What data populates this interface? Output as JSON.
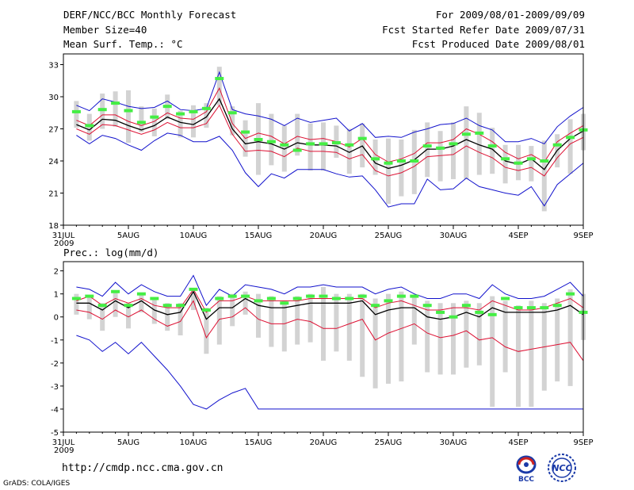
{
  "header": {
    "title": "DERF/NCC/BCC Monthly Forecast",
    "member_size": "Member Size=40",
    "variable": "Mean Surf. Temp.: °C",
    "period": "For 2009/08/01-2009/09/09",
    "started": "Fcst Started Refer Date 2009/07/31",
    "produced": "Fcst Produced Date 2009/08/01"
  },
  "footer": {
    "url": "http://cmdp.ncc.cma.gov.cn",
    "grads": "GrADS: COLA/IGES",
    "logo_bcc_text": "BCC",
    "logo_ncc_text": "NCC"
  },
  "colors": {
    "ensemble_mean": "#000000",
    "obs_bar": "#44ee44",
    "range_bar": "#d3d3d3",
    "spread_line": "#dd1133",
    "extreme_line": "#1111cc"
  },
  "chart_data": [
    {
      "type": "line",
      "title": "Mean Surf. Temp.: °C",
      "ylim": [
        18,
        34
      ],
      "yticks": [
        18,
        21,
        24,
        27,
        30,
        33
      ],
      "xlim": [
        0,
        40
      ],
      "xtick_positions": [
        0,
        5,
        10,
        15,
        20,
        25,
        30,
        35,
        40
      ],
      "xtick_labels": [
        "31JUL",
        "5AUG",
        "10AUG",
        "15AUG",
        "20AUG",
        "25AUG",
        "30AUG",
        "4SEP",
        "9SEP"
      ],
      "x_year_label": "2009",
      "x": [
        1,
        2,
        3,
        4,
        5,
        6,
        7,
        8,
        9,
        10,
        11,
        12,
        13,
        14,
        15,
        16,
        17,
        18,
        19,
        20,
        21,
        22,
        23,
        24,
        25,
        26,
        27,
        28,
        29,
        30,
        31,
        32,
        33,
        34,
        35,
        36,
        37,
        38,
        39,
        40
      ],
      "series": [
        {
          "name": "max",
          "values": [
            29.2,
            28.7,
            29.8,
            29.5,
            29.1,
            28.9,
            29.0,
            29.6,
            28.8,
            28.7,
            28.9,
            32.3,
            28.8,
            28.4,
            28.2,
            27.9,
            27.3,
            28.0,
            27.6,
            27.8,
            28.0,
            26.8,
            27.5,
            26.2,
            26.3,
            26.2,
            26.7,
            27.0,
            27.4,
            27.5,
            28.0,
            27.3,
            26.9,
            25.8,
            25.8,
            26.1,
            25.6,
            27.2,
            28.2,
            29.0
          ]
        },
        {
          "name": "upper",
          "values": [
            27.8,
            27.3,
            28.3,
            28.3,
            27.7,
            27.3,
            27.7,
            28.5,
            28.0,
            27.9,
            28.6,
            30.8,
            27.5,
            26.1,
            26.6,
            26.3,
            25.6,
            26.3,
            26.0,
            26.1,
            25.8,
            25.3,
            26.1,
            24.6,
            23.9,
            24.2,
            24.7,
            25.7,
            25.7,
            26.0,
            27.0,
            26.5,
            25.8,
            24.8,
            24.2,
            24.6,
            23.9,
            25.8,
            26.6,
            27.3
          ]
        },
        {
          "name": "mean",
          "values": [
            27.4,
            26.9,
            27.9,
            27.8,
            27.3,
            26.9,
            27.3,
            28.1,
            27.6,
            27.4,
            28.1,
            29.8,
            27.0,
            25.6,
            25.8,
            25.6,
            25.1,
            25.7,
            25.5,
            25.5,
            25.4,
            24.8,
            25.4,
            23.8,
            23.3,
            23.6,
            24.1,
            25.1,
            25.1,
            25.4,
            26.0,
            25.5,
            25.1,
            24.0,
            23.7,
            24.2,
            23.2,
            25.0,
            26.1,
            26.8
          ]
        },
        {
          "name": "lower",
          "values": [
            27.0,
            26.5,
            27.4,
            27.3,
            26.9,
            26.5,
            26.9,
            27.6,
            27.1,
            27.1,
            27.5,
            29.2,
            26.5,
            24.9,
            25.0,
            24.9,
            24.4,
            25.2,
            24.9,
            24.9,
            24.8,
            24.2,
            24.6,
            23.1,
            22.6,
            22.9,
            23.5,
            24.4,
            24.5,
            24.6,
            25.4,
            24.8,
            24.3,
            23.4,
            23.1,
            23.4,
            22.6,
            24.3,
            25.6,
            26.2
          ]
        },
        {
          "name": "min",
          "values": [
            26.4,
            25.6,
            26.4,
            26.1,
            25.5,
            25.0,
            25.9,
            26.6,
            26.4,
            25.8,
            25.8,
            26.3,
            25.0,
            22.9,
            21.6,
            22.8,
            22.4,
            23.2,
            23.2,
            23.2,
            22.8,
            22.5,
            22.6,
            21.3,
            19.7,
            20.0,
            20.0,
            22.3,
            21.3,
            21.4,
            22.4,
            21.6,
            21.3,
            21.0,
            20.8,
            21.6,
            19.8,
            21.8,
            22.8,
            23.8
          ]
        },
        {
          "name": "obs",
          "values": [
            28.6,
            27.3,
            28.8,
            29.4,
            28.7,
            27.6,
            28.1,
            29.1,
            28.4,
            28.6,
            28.9,
            31.7,
            28.5,
            26.7,
            26.0,
            25.8,
            25.5,
            25.0,
            25.6,
            25.6,
            25.7,
            25.5,
            26.1,
            24.2,
            23.8,
            24.0,
            24.0,
            25.4,
            25.2,
            25.6,
            26.5,
            26.6,
            25.4,
            24.2,
            23.8,
            24.2,
            24.0,
            25.5,
            26.2,
            26.9
          ]
        },
        {
          "name": "range_top",
          "values": [
            29.6,
            28.4,
            30.3,
            30.5,
            30.6,
            29.1,
            28.9,
            30.2,
            28.7,
            29.2,
            29.4,
            32.8,
            29.1,
            27.8,
            29.4,
            28.4,
            27.3,
            28.4,
            27.5,
            27.6,
            27.3,
            27.0,
            27.5,
            26.0,
            26.1,
            26.0,
            26.9,
            27.6,
            26.8,
            27.6,
            29.1,
            28.5,
            27.1,
            25.5,
            25.5,
            25.4,
            25.9,
            26.5,
            27.9,
            28.4
          ]
        },
        {
          "name": "range_bottom",
          "values": [
            27.1,
            25.9,
            27.0,
            27.2,
            25.7,
            26.7,
            26.3,
            27.9,
            26.2,
            26.2,
            27.1,
            29.2,
            26.4,
            24.4,
            22.7,
            23.6,
            23.0,
            24.5,
            23.1,
            23.1,
            24.3,
            22.8,
            23.4,
            22.7,
            20.0,
            20.7,
            20.9,
            22.5,
            22.1,
            22.3,
            22.3,
            22.7,
            22.8,
            21.9,
            22.2,
            22.1,
            19.3,
            23.4,
            22.8,
            25.0
          ]
        }
      ]
    },
    {
      "type": "line",
      "title": "Prec.: log(mm/d)",
      "ylim": [
        -5,
        2.4
      ],
      "yticks": [
        -5,
        -4,
        -3,
        -2,
        -1,
        0,
        1,
        2
      ],
      "xlim": [
        0,
        40
      ],
      "xtick_positions": [
        0,
        5,
        10,
        15,
        20,
        25,
        30,
        35,
        40
      ],
      "xtick_labels": [
        "31JUL",
        "5AUG",
        "10AUG",
        "15AUG",
        "20AUG",
        "25AUG",
        "30AUG",
        "4SEP",
        "9SEP"
      ],
      "x_year_label": "2009",
      "x": [
        1,
        2,
        3,
        4,
        5,
        6,
        7,
        8,
        9,
        10,
        11,
        12,
        13,
        14,
        15,
        16,
        17,
        18,
        19,
        20,
        21,
        22,
        23,
        24,
        25,
        26,
        27,
        28,
        29,
        30,
        31,
        32,
        33,
        34,
        35,
        36,
        37,
        38,
        39,
        40
      ],
      "series": [
        {
          "name": "max",
          "values": [
            1.3,
            1.2,
            0.9,
            1.5,
            1.0,
            1.4,
            1.1,
            0.9,
            0.9,
            1.8,
            0.5,
            1.2,
            0.9,
            1.4,
            1.3,
            1.2,
            1.0,
            1.3,
            1.3,
            1.4,
            1.3,
            1.3,
            1.3,
            1.0,
            1.2,
            1.3,
            1.0,
            0.8,
            0.8,
            1.0,
            1.0,
            0.8,
            1.4,
            1.0,
            0.8,
            0.8,
            0.9,
            1.2,
            1.5,
            0.9
          ]
        },
        {
          "name": "upper",
          "values": [
            0.7,
            0.9,
            0.5,
            0.8,
            0.6,
            0.8,
            0.5,
            0.4,
            0.4,
            1.2,
            0.2,
            0.7,
            0.7,
            0.9,
            0.7,
            0.7,
            0.7,
            0.7,
            0.8,
            0.8,
            0.8,
            0.8,
            0.8,
            0.4,
            0.6,
            0.7,
            0.5,
            0.3,
            0.3,
            0.4,
            0.4,
            0.3,
            0.7,
            0.5,
            0.3,
            0.3,
            0.4,
            0.6,
            0.8,
            0.4
          ]
        },
        {
          "name": "mean",
          "values": [
            0.6,
            0.6,
            0.3,
            0.7,
            0.4,
            0.7,
            0.3,
            0.1,
            0.2,
            1.1,
            -0.1,
            0.4,
            0.4,
            0.8,
            0.5,
            0.4,
            0.4,
            0.5,
            0.6,
            0.6,
            0.6,
            0.6,
            0.7,
            0.1,
            0.3,
            0.4,
            0.4,
            0.0,
            -0.1,
            0.0,
            0.2,
            0.0,
            0.4,
            0.2,
            0.2,
            0.2,
            0.2,
            0.3,
            0.5,
            0.1
          ]
        },
        {
          "name": "lower",
          "values": [
            0.3,
            0.2,
            -0.1,
            0.3,
            0.0,
            0.3,
            -0.1,
            -0.4,
            -0.2,
            0.7,
            -0.9,
            -0.1,
            0.0,
            0.4,
            -0.1,
            -0.3,
            -0.3,
            -0.1,
            -0.2,
            -0.5,
            -0.5,
            -0.3,
            -0.1,
            -1.0,
            -0.7,
            -0.5,
            -0.3,
            -0.7,
            -0.9,
            -0.8,
            -0.6,
            -1.0,
            -0.9,
            -1.3,
            -1.5,
            -1.4,
            -1.3,
            -1.2,
            -1.1,
            -1.9
          ]
        },
        {
          "name": "min",
          "values": [
            -0.8,
            -1.0,
            -1.5,
            -1.1,
            -1.6,
            -1.1,
            -1.7,
            -2.3,
            -3.0,
            -3.8,
            -4.0,
            -3.6,
            -3.3,
            -3.1,
            -4.0,
            -4.0,
            -4.0,
            -4.0,
            -4.0,
            -4.0,
            -4.0,
            -4.0,
            -4.0,
            -4.0,
            -4.0,
            -4.0,
            -4.0,
            -4.0,
            -4.0,
            -4.0,
            -4.0,
            -4.0,
            -4.0,
            -4.0,
            -4.0,
            -4.0,
            -4.0,
            -4.0,
            -4.0,
            -4.0
          ]
        },
        {
          "name": "obs",
          "values": [
            0.8,
            0.9,
            0.5,
            1.1,
            0.5,
            1.0,
            0.8,
            0.5,
            0.5,
            1.2,
            0.3,
            0.8,
            0.9,
            0.9,
            0.7,
            0.8,
            0.6,
            0.8,
            0.9,
            0.9,
            0.8,
            0.8,
            0.9,
            0.5,
            0.7,
            0.9,
            0.9,
            0.5,
            0.2,
            0.0,
            0.5,
            0.2,
            0.1,
            0.8,
            0.4,
            0.4,
            0.4,
            0.5,
            1.0,
            0.2
          ]
        },
        {
          "name": "range_top",
          "values": [
            1.0,
            0.9,
            0.6,
            1.1,
            0.6,
            1.0,
            0.8,
            0.6,
            0.6,
            1.1,
            0.4,
            0.9,
            1.0,
            1.1,
            1.0,
            0.9,
            0.7,
            0.9,
            1.0,
            1.3,
            1.0,
            1.0,
            1.0,
            0.8,
            1.0,
            1.1,
            0.9,
            0.7,
            0.6,
            0.6,
            0.7,
            0.6,
            0.9,
            0.7,
            0.5,
            0.7,
            0.6,
            0.8,
            1.2,
            1.0
          ]
        },
        {
          "name": "range_bottom",
          "values": [
            0.1,
            -0.1,
            -0.6,
            0.0,
            -0.5,
            0.2,
            -0.3,
            -0.6,
            -0.8,
            0.3,
            -1.6,
            -1.2,
            -0.4,
            0.1,
            -0.9,
            -1.3,
            -1.5,
            -1.2,
            -1.1,
            -1.9,
            -1.5,
            -1.9,
            -2.6,
            -3.1,
            -2.9,
            -2.8,
            -1.2,
            -2.4,
            -2.5,
            -2.5,
            -2.2,
            -2.1,
            -3.9,
            -2.4,
            -3.9,
            -3.9,
            -3.2,
            -2.8,
            -3.0,
            -1.0
          ]
        }
      ]
    }
  ]
}
